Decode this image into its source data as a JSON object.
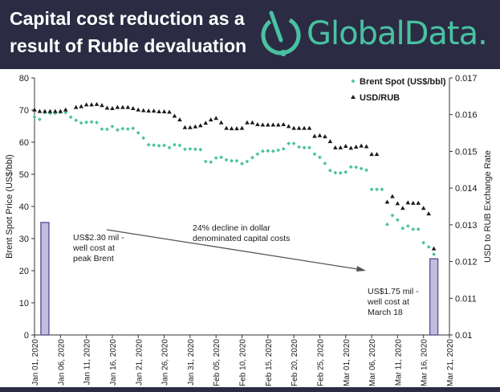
{
  "header": {
    "title": "Capital cost reduction as a result of Ruble devaluation",
    "title_line1": "Capital cost reduction as a",
    "title_line2": "result of Ruble devaluation",
    "logo_text": "GlobalData.",
    "brand_color": "#49c2a2",
    "banner_color": "#2b2c43"
  },
  "chart_data": {
    "type": "scatter",
    "title": "Capital cost reduction as a result of Ruble devaluation",
    "xlabel": "",
    "ylabel_left": "Brent Spot Price (US$/bbl)",
    "ylabel_right": "USD to RUB Exchange Rate",
    "ylim_left": [
      0,
      80
    ],
    "ylim_right": [
      0.01,
      0.017
    ],
    "yticks_left": [
      "0",
      "10",
      "20",
      "30",
      "40",
      "50",
      "60",
      "70",
      "80"
    ],
    "yticks_right": [
      "0.01",
      "0.011",
      "0.012",
      "0.013",
      "0.014",
      "0.015",
      "0.016",
      "0.017"
    ],
    "xticks": [
      "Jan 01, 2020",
      "Jan 06, 2020",
      "Jan 11, 2020",
      "Jan 16, 2020",
      "Jan 21, 2020",
      "Jan 26, 2020",
      "Jan 31, 2020",
      "Feb 05, 2020",
      "Feb 10, 2020",
      "Feb 15, 2020",
      "Feb 20, 2020",
      "Feb 25, 2020",
      "Mar 01, 2020",
      "Mar 06, 2020",
      "Mar 11, 2020",
      "Mar 16, 2020",
      "Mar 21, 2020"
    ],
    "legend_position": "top-right",
    "series": [
      {
        "name": "Brent Spot (US$/bbl)",
        "axis": "left",
        "marker": "diamond",
        "color": "#49c2a2",
        "points": [
          [
            "2020-01-01",
            67.8
          ],
          [
            "2020-01-02",
            67.1
          ],
          [
            "2020-01-03",
            69.2
          ],
          [
            "2020-01-04",
            69.0
          ],
          [
            "2020-01-05",
            69.0
          ],
          [
            "2020-01-06",
            69.3
          ],
          [
            "2020-01-07",
            69.2
          ],
          [
            "2020-01-08",
            67.8
          ],
          [
            "2020-01-09",
            66.8
          ],
          [
            "2020-01-10",
            66.0
          ],
          [
            "2020-01-11",
            66.2
          ],
          [
            "2020-01-12",
            66.3
          ],
          [
            "2020-01-13",
            66.1
          ],
          [
            "2020-01-14",
            64.1
          ],
          [
            "2020-01-15",
            64.0
          ],
          [
            "2020-01-16",
            64.9
          ],
          [
            "2020-01-17",
            63.8
          ],
          [
            "2020-01-18",
            64.2
          ],
          [
            "2020-01-19",
            64.1
          ],
          [
            "2020-01-20",
            64.3
          ],
          [
            "2020-01-21",
            62.9
          ],
          [
            "2020-01-22",
            61.3
          ],
          [
            "2020-01-23",
            59.2
          ],
          [
            "2020-01-24",
            59.1
          ],
          [
            "2020-01-25",
            58.9
          ],
          [
            "2020-01-26",
            59.0
          ],
          [
            "2020-01-27",
            58.3
          ],
          [
            "2020-01-28",
            59.2
          ],
          [
            "2020-01-29",
            59.0
          ],
          [
            "2020-01-30",
            57.8
          ],
          [
            "2020-01-31",
            57.9
          ],
          [
            "2020-02-01",
            57.8
          ],
          [
            "2020-02-02",
            57.7
          ],
          [
            "2020-02-03",
            54.0
          ],
          [
            "2020-02-04",
            53.8
          ],
          [
            "2020-02-05",
            55.1
          ],
          [
            "2020-02-06",
            55.3
          ],
          [
            "2020-02-07",
            54.5
          ],
          [
            "2020-02-08",
            54.2
          ],
          [
            "2020-02-09",
            54.2
          ],
          [
            "2020-02-10",
            53.3
          ],
          [
            "2020-02-11",
            54.0
          ],
          [
            "2020-02-12",
            55.2
          ],
          [
            "2020-02-13",
            56.3
          ],
          [
            "2020-02-14",
            57.2
          ],
          [
            "2020-02-15",
            57.3
          ],
          [
            "2020-02-16",
            57.2
          ],
          [
            "2020-02-17",
            57.5
          ],
          [
            "2020-02-18",
            57.9
          ],
          [
            "2020-02-19",
            59.6
          ],
          [
            "2020-02-20",
            59.6
          ],
          [
            "2020-02-21",
            58.5
          ],
          [
            "2020-02-22",
            58.3
          ],
          [
            "2020-02-23",
            58.3
          ],
          [
            "2020-02-24",
            56.3
          ],
          [
            "2020-02-25",
            55.3
          ],
          [
            "2020-02-26",
            53.4
          ],
          [
            "2020-02-27",
            51.2
          ],
          [
            "2020-02-28",
            50.5
          ],
          [
            "2020-02-29",
            50.4
          ],
          [
            "2020-03-01",
            50.7
          ],
          [
            "2020-03-02",
            52.3
          ],
          [
            "2020-03-03",
            52.2
          ],
          [
            "2020-03-04",
            51.8
          ],
          [
            "2020-03-05",
            51.3
          ],
          [
            "2020-03-06",
            45.3
          ],
          [
            "2020-03-07",
            45.3
          ],
          [
            "2020-03-08",
            45.3
          ],
          [
            "2020-03-09",
            34.4
          ],
          [
            "2020-03-10",
            37.2
          ],
          [
            "2020-03-11",
            35.8
          ],
          [
            "2020-03-12",
            33.2
          ],
          [
            "2020-03-13",
            33.9
          ],
          [
            "2020-03-14",
            32.9
          ],
          [
            "2020-03-15",
            32.9
          ],
          [
            "2020-03-16",
            28.7
          ],
          [
            "2020-03-17",
            27.4
          ],
          [
            "2020-03-18",
            25.1
          ]
        ]
      },
      {
        "name": "USD/RUB",
        "axis": "right",
        "marker": "triangle",
        "color": "#1a1a1a",
        "points": [
          [
            "2020-01-01",
            0.01613
          ],
          [
            "2020-01-02",
            0.01609
          ],
          [
            "2020-01-03",
            0.01609
          ],
          [
            "2020-01-04",
            0.01609
          ],
          [
            "2020-01-05",
            0.01609
          ],
          [
            "2020-01-06",
            0.01609
          ],
          [
            "2020-01-07",
            0.01613
          ],
          [
            "2020-01-09",
            0.0162
          ],
          [
            "2020-01-10",
            0.01622
          ],
          [
            "2020-01-11",
            0.01627
          ],
          [
            "2020-01-12",
            0.01627
          ],
          [
            "2020-01-13",
            0.01628
          ],
          [
            "2020-01-14",
            0.01625
          ],
          [
            "2020-01-15",
            0.01618
          ],
          [
            "2020-01-16",
            0.01617
          ],
          [
            "2020-01-17",
            0.0162
          ],
          [
            "2020-01-18",
            0.0162
          ],
          [
            "2020-01-19",
            0.0162
          ],
          [
            "2020-01-20",
            0.01617
          ],
          [
            "2020-01-21",
            0.01613
          ],
          [
            "2020-01-22",
            0.01611
          ],
          [
            "2020-01-23",
            0.0161
          ],
          [
            "2020-01-24",
            0.0161
          ],
          [
            "2020-01-25",
            0.01608
          ],
          [
            "2020-01-26",
            0.01608
          ],
          [
            "2020-01-27",
            0.01607
          ],
          [
            "2020-01-28",
            0.01596
          ],
          [
            "2020-01-29",
            0.01586
          ],
          [
            "2020-01-30",
            0.01565
          ],
          [
            "2020-01-31",
            0.01565
          ],
          [
            "2020-02-01",
            0.01567
          ],
          [
            "2020-02-02",
            0.0157
          ],
          [
            "2020-02-03",
            0.01577
          ],
          [
            "2020-02-04",
            0.01586
          ],
          [
            "2020-02-05",
            0.0159
          ],
          [
            "2020-02-06",
            0.01578
          ],
          [
            "2020-02-07",
            0.01563
          ],
          [
            "2020-02-08",
            0.01562
          ],
          [
            "2020-02-09",
            0.01562
          ],
          [
            "2020-02-10",
            0.01563
          ],
          [
            "2020-02-11",
            0.01578
          ],
          [
            "2020-02-12",
            0.01578
          ],
          [
            "2020-02-13",
            0.01573
          ],
          [
            "2020-02-14",
            0.01572
          ],
          [
            "2020-02-15",
            0.01572
          ],
          [
            "2020-02-16",
            0.01572
          ],
          [
            "2020-02-17",
            0.01572
          ],
          [
            "2020-02-18",
            0.01573
          ],
          [
            "2020-02-19",
            0.01568
          ],
          [
            "2020-02-20",
            0.01563
          ],
          [
            "2020-02-21",
            0.01563
          ],
          [
            "2020-02-22",
            0.01563
          ],
          [
            "2020-02-23",
            0.01563
          ],
          [
            "2020-02-24",
            0.01541
          ],
          [
            "2020-02-25",
            0.01543
          ],
          [
            "2020-02-26",
            0.0154
          ],
          [
            "2020-02-27",
            0.01527
          ],
          [
            "2020-02-28",
            0.0151
          ],
          [
            "2020-02-29",
            0.0151
          ],
          [
            "2020-03-01",
            0.01514
          ],
          [
            "2020-03-02",
            0.01509
          ],
          [
            "2020-03-03",
            0.01512
          ],
          [
            "2020-03-04",
            0.01515
          ],
          [
            "2020-03-05",
            0.01513
          ],
          [
            "2020-03-06",
            0.01492
          ],
          [
            "2020-03-07",
            0.01492
          ],
          [
            "2020-03-09",
            0.01362
          ],
          [
            "2020-03-10",
            0.01377
          ],
          [
            "2020-03-11",
            0.01358
          ],
          [
            "2020-03-12",
            0.01345
          ],
          [
            "2020-03-13",
            0.0136
          ],
          [
            "2020-03-14",
            0.01359
          ],
          [
            "2020-03-15",
            0.01359
          ],
          [
            "2020-03-16",
            0.01345
          ],
          [
            "2020-03-17",
            0.0133
          ],
          [
            "2020-03-18",
            0.01235
          ]
        ]
      }
    ],
    "bars": [
      {
        "date": "2020-01-03",
        "value": 35
      },
      {
        "date": "2020-03-18",
        "value": 23.7
      }
    ],
    "bar_color": "#c3bcde",
    "bar_edge_color": "#6a5a9a",
    "annotations": {
      "peak_cost": "US$2.30 mil -\nwell cost at\npeak Brent",
      "decline": "24% decline in dollar\ndenominated capital costs",
      "march_cost": "US$1.75 mil -\nwell cost at\nMarch 18"
    }
  }
}
